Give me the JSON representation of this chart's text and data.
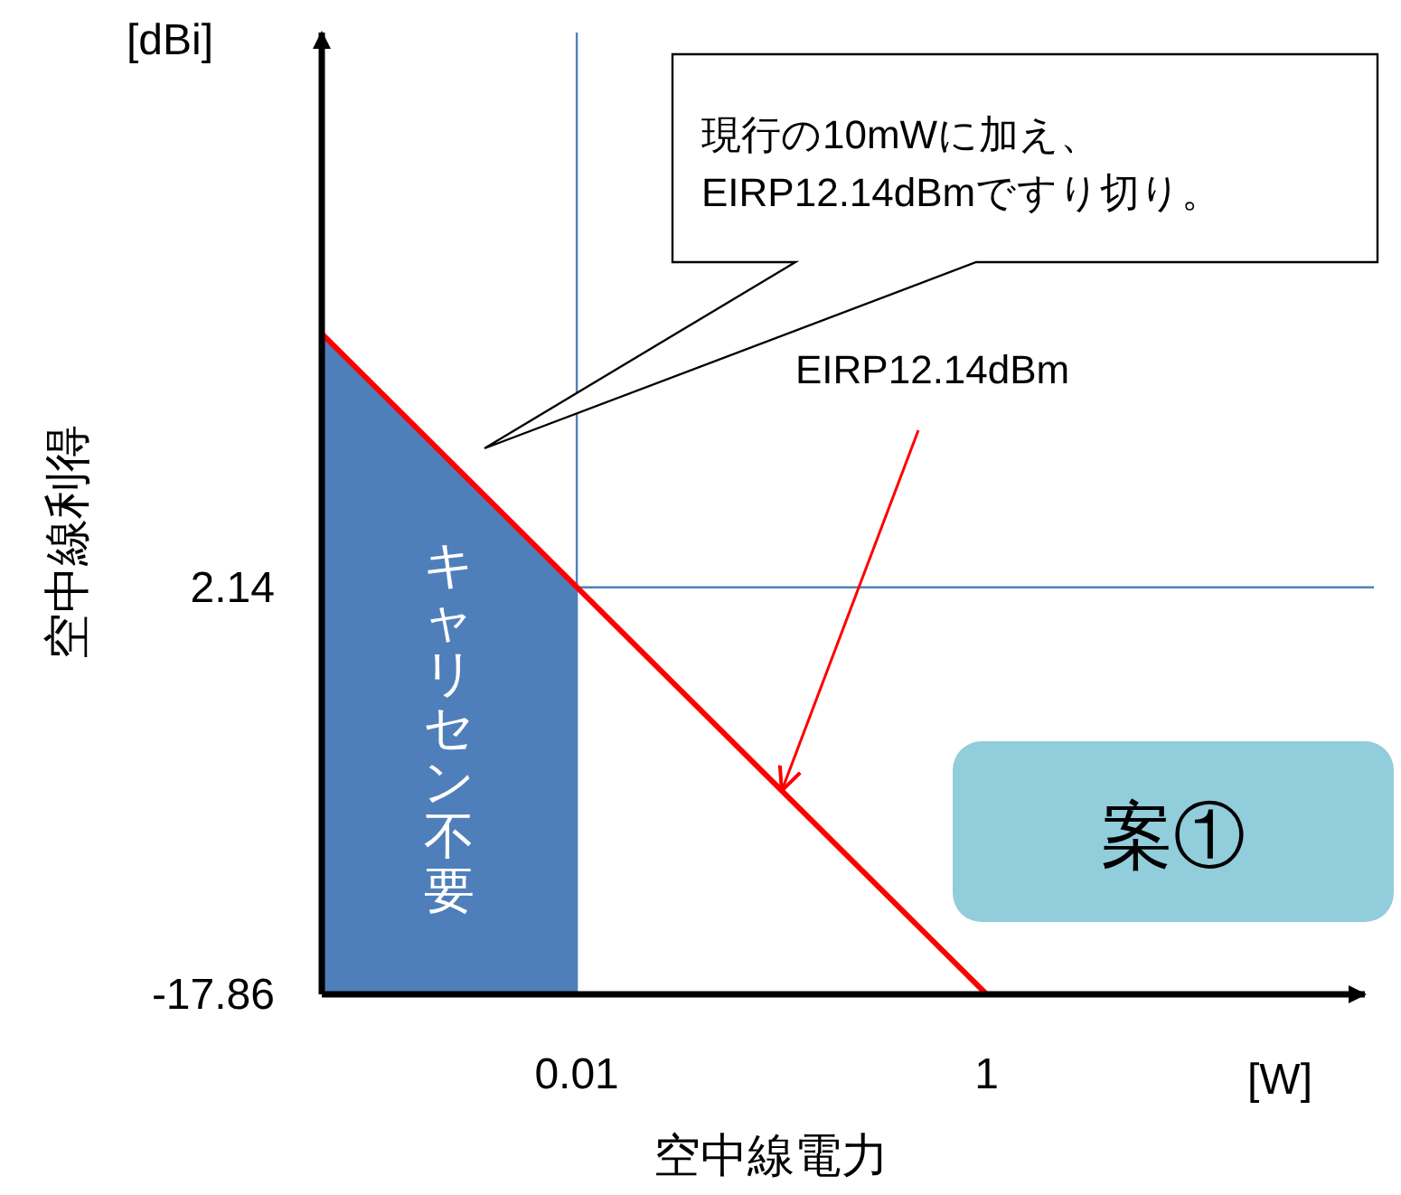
{
  "chart_data": {
    "type": "line",
    "xlabel": "空中線電力",
    "ylabel": "空中線利得",
    "log": "x",
    "xlim": [
      0.00057,
      70
    ],
    "ylim": [
      -17.86,
      29.4
    ],
    "xticks": [
      0.01,
      1
    ],
    "yticks": [
      2.14,
      {
        "value": -17.86,
        "label": "-17.86"
      }
    ],
    "series": [
      {
        "name": "キャリセン不要",
        "type": "area",
        "color": "#4f7fba",
        "x": [
          0.00057,
          0.00057,
          0.01,
          0.01
        ],
        "values": [
          -17.86,
          14.6,
          2.14,
          -17.86
        ]
      },
      {
        "color": "#ff0000",
        "x": [
          0.00057,
          1
        ],
        "values": [
          14.6,
          -17.86
        ]
      }
    ],
    "ref_lines": [
      {
        "axis": "x",
        "value": 0.01,
        "color": "#4f81bd"
      },
      {
        "axis": "y",
        "value": 2.14,
        "color": "#4f81bd"
      }
    ],
    "annotations": [
      "現行の10mWに加え、\nEIRP12.14dBmですり切り。",
      {
        "text": "EIRP12.14dBm",
        "x": 0.1,
        "y": -7.86
      },
      "案①",
      "[dBi]",
      "[W]"
    ]
  }
}
